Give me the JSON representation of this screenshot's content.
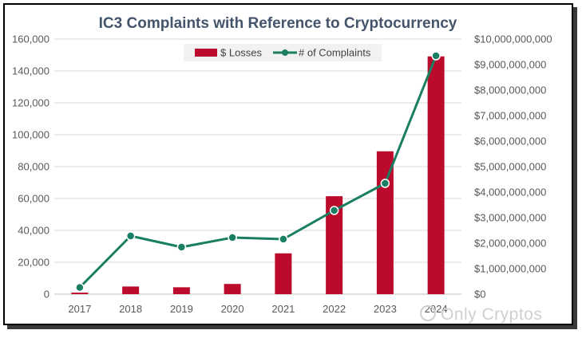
{
  "chart_data": {
    "type": "bar+line",
    "title": "IC3 Complaints with Reference to Cryptocurrency",
    "categories": [
      "2017",
      "2018",
      "2019",
      "2020",
      "2021",
      "2022",
      "2023",
      "2024"
    ],
    "series": [
      {
        "name": "$ Losses",
        "kind": "bar",
        "axis": "right",
        "color": "#bb0a2c",
        "values": [
          60000000,
          300000000,
          270000000,
          400000000,
          1600000000,
          3840000000,
          5600000000,
          9320000000
        ]
      },
      {
        "name": "# of Complaints",
        "kind": "line",
        "axis": "left",
        "color": "#1a7f62",
        "values": [
          4200,
          36500,
          29500,
          35500,
          34500,
          52500,
          69500,
          149500
        ]
      }
    ],
    "left_axis": {
      "ylim": [
        0,
        160000
      ],
      "ticks": [
        "0",
        "20,000",
        "40,000",
        "60,000",
        "80,000",
        "100,000",
        "120,000",
        "140,000",
        "160,000"
      ]
    },
    "right_axis": {
      "ylim": [
        0,
        10000000000
      ],
      "ticks": [
        "$0",
        "$1,000,000,000",
        "$2,000,000,000",
        "$3,000,000,000",
        "$4,000,000,000",
        "$5,000,000,000",
        "$6,000,000,000",
        "$7,000,000,000",
        "$8,000,000,000",
        "$9,000,000,000",
        "$10,000,000,000"
      ]
    },
    "grid": true,
    "legend_position": "top"
  },
  "watermark": "Only Cryptos"
}
